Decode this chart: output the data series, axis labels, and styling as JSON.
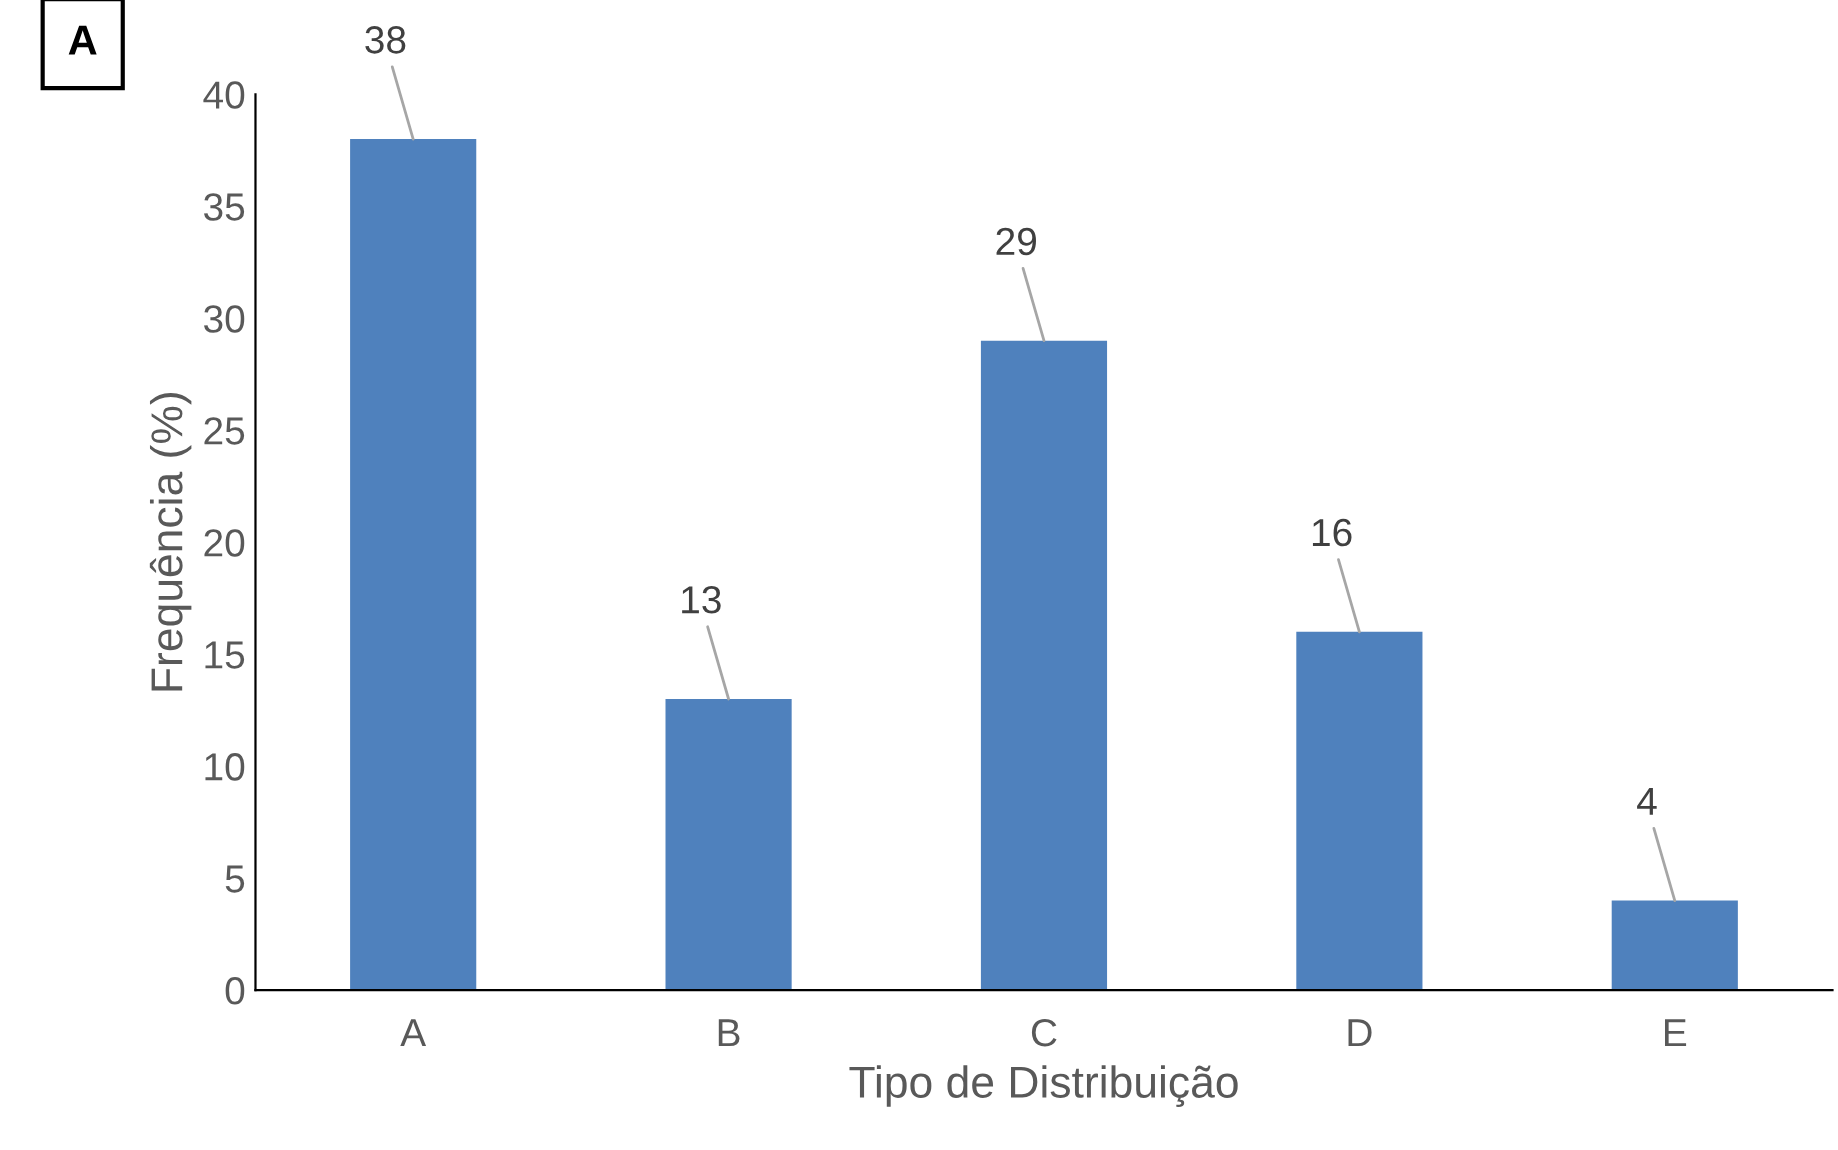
{
  "chart_data": {
    "type": "bar",
    "xlabel": "Tipo de Distribuição",
    "ylabel": "Frequência (%)",
    "categories": [
      "A",
      "B",
      "C",
      "D",
      "E"
    ],
    "values": [
      38,
      13,
      29,
      16,
      4
    ],
    "color": "#4f81bd",
    "ylim": [
      0,
      40
    ],
    "yticks": [
      0,
      5,
      10,
      15,
      20,
      25,
      30,
      35,
      40
    ],
    "data_labels": true,
    "grid": false,
    "legend": false,
    "annotations": [
      "A"
    ]
  }
}
